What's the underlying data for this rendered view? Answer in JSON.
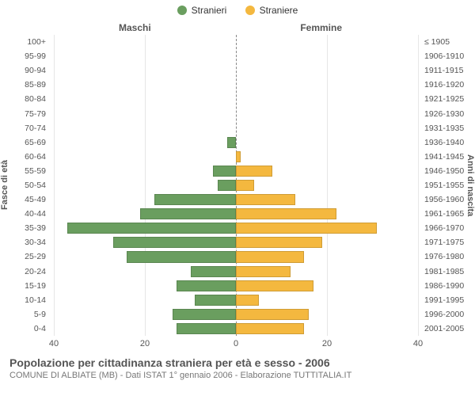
{
  "legend": {
    "male": {
      "label": "Stranieri",
      "color": "#6a9e5f"
    },
    "female": {
      "label": "Straniere",
      "color": "#f4b83f"
    }
  },
  "side_titles": {
    "left": "Maschi",
    "right": "Femmine"
  },
  "axis_titles": {
    "left": "Fasce di età",
    "right": "Anni di nascita"
  },
  "caption": {
    "title": "Popolazione per cittadinanza straniera per età e sesso - 2006",
    "sub": "COMUNE DI ALBIATE (MB) - Dati ISTAT 1° gennaio 2006 - Elaborazione TUTTITALIA.IT"
  },
  "chart": {
    "type": "population-pyramid",
    "xlim": 40,
    "xticks": [
      40,
      20,
      0,
      20,
      40
    ],
    "grid_color": "#e6e6e6",
    "center_axis_color": "#888888",
    "background_color": "#ffffff",
    "bar_gap_ratio": 0.22,
    "groups": [
      {
        "age": "100+",
        "birth": "≤ 1905",
        "m": 0,
        "f": 0
      },
      {
        "age": "95-99",
        "birth": "1906-1910",
        "m": 0,
        "f": 0
      },
      {
        "age": "90-94",
        "birth": "1911-1915",
        "m": 0,
        "f": 0
      },
      {
        "age": "85-89",
        "birth": "1916-1920",
        "m": 0,
        "f": 0
      },
      {
        "age": "80-84",
        "birth": "1921-1925",
        "m": 0,
        "f": 0
      },
      {
        "age": "75-79",
        "birth": "1926-1930",
        "m": 0,
        "f": 0
      },
      {
        "age": "70-74",
        "birth": "1931-1935",
        "m": 0,
        "f": 0
      },
      {
        "age": "65-69",
        "birth": "1936-1940",
        "m": 2,
        "f": 0
      },
      {
        "age": "60-64",
        "birth": "1941-1945",
        "m": 0,
        "f": 1
      },
      {
        "age": "55-59",
        "birth": "1946-1950",
        "m": 5,
        "f": 8
      },
      {
        "age": "50-54",
        "birth": "1951-1955",
        "m": 4,
        "f": 4
      },
      {
        "age": "45-49",
        "birth": "1956-1960",
        "m": 18,
        "f": 13
      },
      {
        "age": "40-44",
        "birth": "1961-1965",
        "m": 21,
        "f": 22
      },
      {
        "age": "35-39",
        "birth": "1966-1970",
        "m": 37,
        "f": 31
      },
      {
        "age": "30-34",
        "birth": "1971-1975",
        "m": 27,
        "f": 19
      },
      {
        "age": "25-29",
        "birth": "1976-1980",
        "m": 24,
        "f": 15
      },
      {
        "age": "20-24",
        "birth": "1981-1985",
        "m": 10,
        "f": 12
      },
      {
        "age": "15-19",
        "birth": "1986-1990",
        "m": 13,
        "f": 17
      },
      {
        "age": "10-14",
        "birth": "1991-1995",
        "m": 9,
        "f": 5
      },
      {
        "age": "5-9",
        "birth": "1996-2000",
        "m": 14,
        "f": 16
      },
      {
        "age": "0-4",
        "birth": "2001-2005",
        "m": 13,
        "f": 15
      }
    ]
  },
  "typography": {
    "legend_fontsize": 12,
    "side_title_fontsize": 12,
    "ylabel_fontsize": 10.5,
    "xlabel_fontsize": 11,
    "axis_title_fontsize": 11,
    "caption_title_fontsize": 14,
    "caption_sub_fontsize": 11,
    "text_color": "#555555",
    "subtext_color": "#777777"
  }
}
